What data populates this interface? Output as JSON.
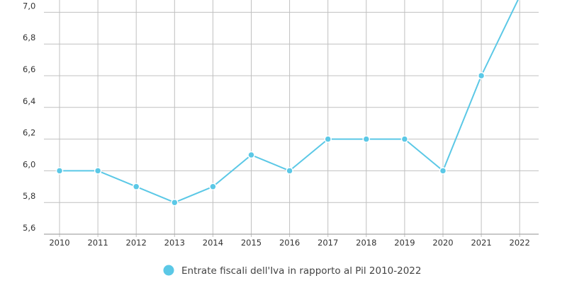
{
  "chart_data": {
    "type": "line",
    "x": [
      "2010",
      "2011",
      "2012",
      "2013",
      "2014",
      "2015",
      "2016",
      "2017",
      "2018",
      "2019",
      "2020",
      "2021",
      "2022"
    ],
    "series": [
      {
        "name": "Entrate fiscali dell'Iva in rapporto al Pil 2010-2022",
        "values": [
          6.0,
          6.0,
          5.9,
          5.8,
          5.9,
          6.1,
          6.0,
          6.2,
          6.2,
          6.2,
          6.0,
          6.6,
          7.1
        ],
        "color": "#5bc8e6"
      }
    ],
    "yticks": [
      "5,6",
      "5,8",
      "6,0",
      "6,2",
      "6,4",
      "6,6",
      "6,8",
      "7,0"
    ],
    "ytick_values": [
      5.6,
      5.8,
      6.0,
      6.2,
      6.4,
      6.6,
      6.8,
      7.0
    ],
    "ylim": [
      5.6,
      7.1
    ],
    "grid": true,
    "legend_position": "bottom-center",
    "colors": {
      "line": "#5bc8e6",
      "grid": "#c0c0c0",
      "axis": "#a8a8a8",
      "text": "#333333"
    }
  }
}
